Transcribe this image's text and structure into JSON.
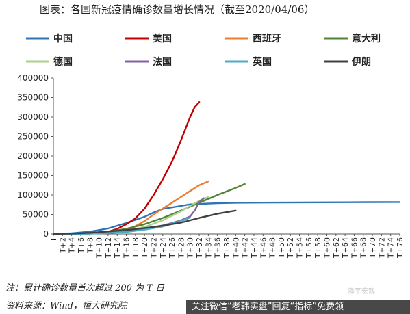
{
  "title": "图表：各国新冠疫情确诊数量增长情况（截至2020/04/06）",
  "note": "注：累计确诊数量首次超过 200 为 T 日",
  "source": "资料来源：Wind，恒大研究院",
  "watermark": "泽平宏观",
  "banner": "关注微信“老韩实盘”回复“指标”免费领",
  "colors": {
    "china": "#2e75b6",
    "usa": "#c00000",
    "spain": "#ed7d31",
    "italy": "#548235",
    "germany": "#a9d18e",
    "france": "#8064a2",
    "uk": "#4bacc6",
    "iran": "#404040"
  },
  "chart_data": {
    "type": "line",
    "title": "",
    "xlabel": "",
    "ylabel": "",
    "ylim": [
      0,
      400000
    ],
    "yticks": [
      0,
      50000,
      100000,
      150000,
      200000,
      250000,
      300000,
      350000,
      400000
    ],
    "xtick_labels": [
      "T",
      "T+2",
      "T+4",
      "T+6",
      "T+8",
      "T+10",
      "T+12",
      "T+14",
      "T+16",
      "T+18",
      "T+20",
      "T+22",
      "T+24",
      "T+26",
      "T+28",
      "T+30",
      "T+32",
      "T+34",
      "T+36",
      "T+38",
      "T+40",
      "T+42",
      "T+44",
      "T+46",
      "T+48",
      "T+50",
      "T+52",
      "T+54",
      "T+56",
      "T+58",
      "T+60",
      "T+62",
      "T+64",
      "T+66",
      "T+68",
      "T+70",
      "T+72",
      "T+74",
      "T+76"
    ],
    "x_range": [
      0,
      76
    ],
    "grid": false,
    "legend_position": "top",
    "series": [
      {
        "name": "中国",
        "color_key": "china",
        "x": [
          0,
          4,
          8,
          12,
          16,
          20,
          22,
          24,
          26,
          28,
          30,
          36,
          40,
          50,
          60,
          70,
          76
        ],
        "values": [
          300,
          2000,
          6000,
          14000,
          28000,
          44000,
          55000,
          64000,
          68000,
          72000,
          76000,
          79000,
          80000,
          80500,
          81000,
          81500,
          81700
        ]
      },
      {
        "name": "美国",
        "color_key": "usa",
        "x": [
          0,
          4,
          8,
          12,
          14,
          16,
          18,
          20,
          22,
          24,
          26,
          28,
          30,
          31,
          32
        ],
        "values": [
          200,
          500,
          1500,
          6000,
          13000,
          25000,
          40000,
          65000,
          100000,
          140000,
          185000,
          240000,
          300000,
          325000,
          338000
        ]
      },
      {
        "name": "西班牙",
        "color_key": "spain",
        "x": [
          0,
          4,
          8,
          12,
          16,
          18,
          20,
          22,
          24,
          26,
          28,
          30,
          32,
          34
        ],
        "values": [
          200,
          500,
          1200,
          3500,
          9000,
          20000,
          33000,
          50000,
          65000,
          80000,
          95000,
          110000,
          125000,
          135000
        ]
      },
      {
        "name": "意大利",
        "color_key": "italy",
        "x": [
          0,
          4,
          8,
          12,
          16,
          20,
          24,
          28,
          32,
          36,
          40,
          42
        ],
        "values": [
          200,
          800,
          2500,
          6000,
          13000,
          25000,
          41000,
          60000,
          80000,
          100000,
          118000,
          128000
        ]
      },
      {
        "name": "德国",
        "color_key": "germany",
        "x": [
          0,
          4,
          8,
          12,
          16,
          20,
          24,
          28,
          30,
          32,
          34
        ],
        "values": [
          200,
          400,
          1000,
          3000,
          8000,
          18000,
          35000,
          58000,
          72000,
          85000,
          95000
        ]
      },
      {
        "name": "法国",
        "color_key": "france",
        "x": [
          0,
          4,
          8,
          12,
          16,
          20,
          24,
          26,
          28,
          30,
          31,
          32,
          33
        ],
        "values": [
          200,
          400,
          1000,
          2500,
          6000,
          13000,
          22000,
          28000,
          35000,
          45000,
          60000,
          82000,
          92000
        ]
      },
      {
        "name": "英国",
        "color_key": "uk",
        "x": [
          0,
          4,
          8,
          12,
          16,
          20,
          24,
          28,
          30
        ],
        "values": [
          200,
          400,
          900,
          2200,
          5000,
          11000,
          19000,
          33000,
          42000
        ]
      },
      {
        "name": "伊朗",
        "color_key": "iran",
        "x": [
          0,
          4,
          8,
          12,
          16,
          20,
          24,
          28,
          32,
          36,
          40
        ],
        "values": [
          200,
          1000,
          3000,
          6500,
          10000,
          15000,
          21000,
          29000,
          41000,
          52000,
          60000
        ]
      }
    ]
  }
}
